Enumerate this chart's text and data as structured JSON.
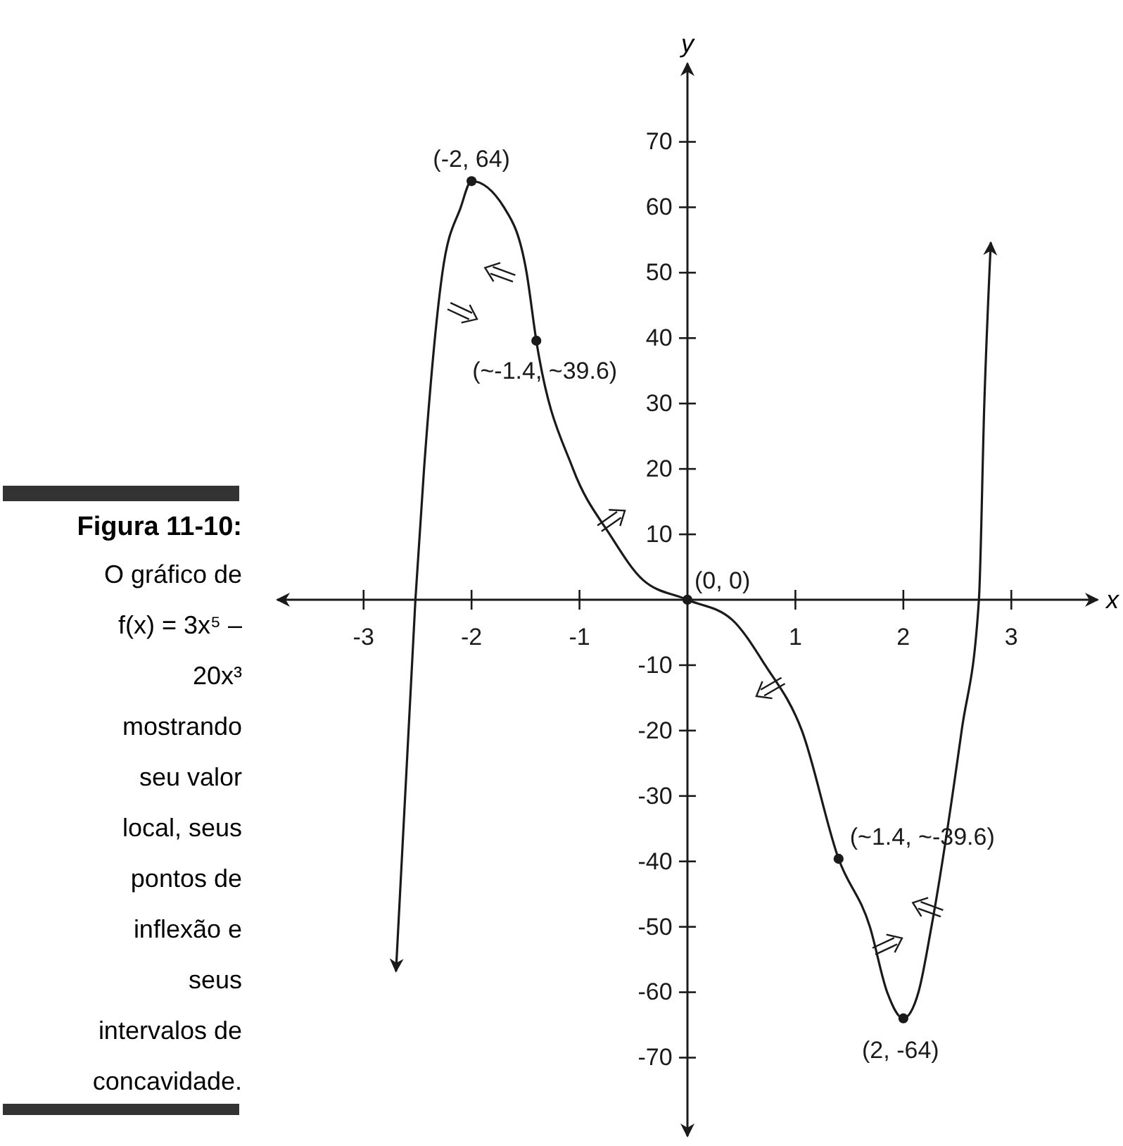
{
  "chart_data": {
    "type": "line",
    "title": "Figura 11-10:",
    "subtitle": "O gráfico de f(x) = 3x⁵ – 20x³ mostrando seu valor local, seus pontos de inflexão e seus intervalos de concavidade.",
    "xlabel": "x",
    "ylabel": "y",
    "xlim": [
      -3.8,
      3.8
    ],
    "ylim": [
      -82,
      82
    ],
    "xticks": [
      -3,
      -2,
      -1,
      1,
      2,
      3
    ],
    "yticks": [
      -70,
      -60,
      -50,
      -40,
      -30,
      -20,
      -10,
      10,
      20,
      30,
      40,
      50,
      60,
      70
    ],
    "grid": false,
    "series": [
      {
        "color": "#1a1a1a",
        "marker": "none",
        "x": [
          -2.7,
          -2.52,
          -2.44,
          -2.27,
          -2.1,
          -2,
          -1.7,
          -1.49,
          -1.4,
          -1.06,
          -0.72,
          -0.41,
          0,
          0.41,
          0.72,
          1.06,
          1.4,
          1.69,
          1.85,
          2,
          2.14,
          2.26,
          2.54,
          2.7,
          2.75,
          2.81
        ],
        "values": [
          -56.8,
          0,
          20,
          50,
          60,
          64,
          60,
          50,
          39.6,
          20,
          10,
          3,
          0,
          -3,
          -10,
          -20,
          -39.6,
          -50,
          -60,
          -64,
          -60,
          -50,
          -20,
          0,
          30,
          54.6
        ]
      },
      {
        "type": "scatter",
        "color": "#1a1a1a",
        "marker": "circle",
        "x": [
          -2,
          -1.4,
          0,
          1.4,
          2
        ],
        "values": [
          64,
          39.6,
          0,
          -39.6,
          -64
        ]
      }
    ],
    "annotations": [
      {
        "text": "(-2, 64)",
        "x": -2,
        "y": 64
      },
      {
        "text": "(~-1.4, ~39.6)",
        "x": -1.4,
        "y": 39.6
      },
      {
        "text": "(0, 0)",
        "x": 0,
        "y": 0
      },
      {
        "text": "(~1.4, ~-39.6)",
        "x": 1.4,
        "y": -39.6
      },
      {
        "text": "(2, -64)",
        "x": 2,
        "y": -64
      }
    ]
  }
}
